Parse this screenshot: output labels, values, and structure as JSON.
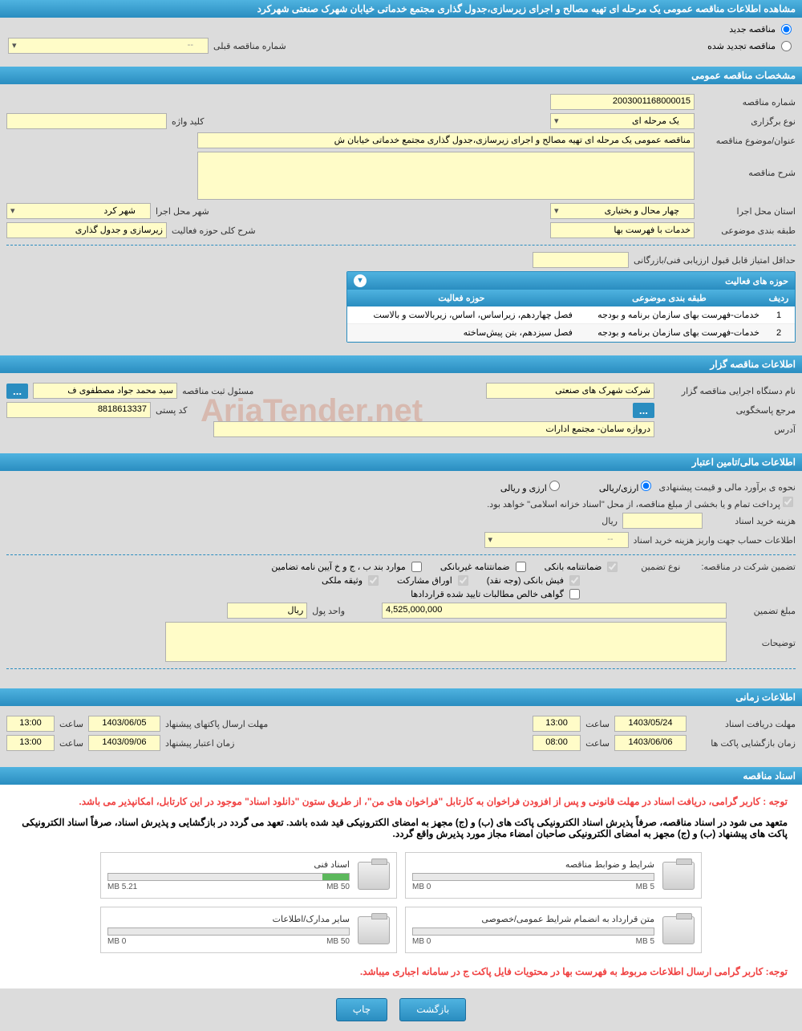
{
  "header": {
    "title": "مشاهده اطلاعات مناقصه عمومی یک مرحله ای تهیه مصالح و اجرای زیرسازی،جدول گذاری مجتمع خدماتی خیابان شهرک صنعتی شهرکرد"
  },
  "tender_type": {
    "new_label": "مناقصه جدید",
    "renewed_label": "مناقصه تجدید شده",
    "prev_number_label": "شماره مناقصه قبلی",
    "prev_number_value": "--"
  },
  "general": {
    "section_title": "مشخصات مناقصه عمومی",
    "number_label": "شماره مناقصه",
    "number_value": "2003001168000015",
    "type_label": "نوع برگزاری",
    "type_value": "یک مرحله ای",
    "keyword_label": "کلید واژه",
    "keyword_value": "",
    "subject_label": "عنوان/موضوع مناقصه",
    "subject_value": "مناقصه عمومی یک مرحله ای تهیه مصالح و اجرای زیرسازی،جدول گذاری مجتمع خدماتی خیابان ش",
    "desc_label": "شرح مناقصه",
    "province_label": "استان محل اجرا",
    "province_value": "چهار محال و بختیاری",
    "city_label": "شهر محل اجرا",
    "city_value": "شهر کرد",
    "category_label": "طبقه بندی موضوعی",
    "category_value": "خدمات با فهرست بها",
    "activity_brief_label": "شرح کلی حوزه فعالیت",
    "activity_brief_value": "زیرسازی و جدول گذاری",
    "min_score_label": "حداقل امتیاز قابل قبول ارزیابی فنی/بازرگانی",
    "min_score_value": ""
  },
  "activity_table": {
    "header": "حوزه های فعالیت",
    "col_row": "ردیف",
    "col_category": "طبقه بندی موضوعی",
    "col_activity": "حوزه فعالیت",
    "rows": [
      {
        "n": "1",
        "category": "خدمات-فهرست بهای سازمان برنامه و بودجه",
        "activity": "فصل چهاردهم، زیراساس، اساس، زیربالاست و بالاست"
      },
      {
        "n": "2",
        "category": "خدمات-فهرست بهای سازمان برنامه و بودجه",
        "activity": "فصل سیزدهم، بتن پیش‌ساخته"
      }
    ]
  },
  "owner": {
    "section_title": "اطلاعات مناقصه گزار",
    "exec_label": "نام دستگاه اجرایی مناقصه گزار",
    "exec_value": "شرکت شهرک های صنعتی",
    "registrar_label": "مسئول ثبت مناقصه",
    "registrar_value": "سید محمد جواد مصطفوی ف",
    "response_label": "مرجع پاسخگویی",
    "postal_label": "کد پستی",
    "postal_value": "8818613337",
    "address_label": "آدرس",
    "address_value": "دروازه سامان- مجتمع ادارات"
  },
  "financial": {
    "section_title": "اطلاعات مالی/تامین اعتبار",
    "estimate_label": "نحوه ی برآورد مالی و قیمت پیشنهادی",
    "opt_rial": "ارزی/ریالی",
    "opt_forex": "ارزی و ریالی",
    "treasury_note": "پرداخت تمام و یا بخشی از مبلغ مناقصه، از محل \"اسناد خزانه اسلامی\" خواهد بود.",
    "doc_fee_label": "هزینه خرید اسناد",
    "doc_fee_unit": "ریال",
    "account_label": "اطلاعات حساب جهت واریز هزینه خرید اسناد",
    "account_value": "--",
    "guarantee_title_label": "تضمین شرکت در مناقصه:",
    "guarantee_type_label": "نوع تضمین",
    "chk_bank": "ضمانتنامه بانکی",
    "chk_nonbank": "ضمانتنامه غیربانکی",
    "chk_cases": "موارد بند ب ، ج و خ آیین نامه تضامین",
    "chk_cash": "فیش بانکی (وجه نقد)",
    "chk_bonds": "اوراق مشارکت",
    "chk_property": "وثیقه ملکی",
    "chk_receivables": "گواهی خالص مطالبات تایید شده قراردادها",
    "amount_label": "مبلغ تضمین",
    "amount_value": "4,525,000,000",
    "unit_label": "واحد پول",
    "unit_value": "ریال",
    "remarks_label": "توضیحات"
  },
  "timing": {
    "section_title": "اطلاعات زمانی",
    "receive_deadline_label": "مهلت دریافت اسناد",
    "receive_deadline_date": "1403/05/24",
    "receive_deadline_time": "13:00",
    "submit_deadline_label": "مهلت ارسال پاکتهای پیشنهاد",
    "submit_deadline_date": "1403/06/05",
    "submit_deadline_time": "13:00",
    "opening_label": "زمان بازگشایی پاکت ها",
    "opening_date": "1403/06/06",
    "opening_time": "08:00",
    "validity_label": "زمان اعتبار پیشنهاد",
    "validity_date": "1403/09/06",
    "validity_time": "13:00",
    "time_word": "ساعت"
  },
  "docs": {
    "section_title": "اسناد مناقصه",
    "warn1": "توجه : کاربر گرامی، دریافت اسناد در مهلت قانونی و پس از افزودن فراخوان به کارتابل \"فراخوان های من\"، از طریق ستون \"دانلود اسناد\" موجود در این کارتابل، امکانپذیر می باشد.",
    "warn2": "متعهد می شود در اسناد مناقصه، صرفاً پذیرش اسناد الکترونیکی پاکت های (ب) و (ج) مجهز به امضای الکترونیکی قید شده باشد. تعهد می گردد در بازگشایی و پذیرش اسناد، صرفاً اسناد الکترونیکی پاکت های پیشنهاد (ب) و (ج) مجهز به امضای الکترونیکی صاحبان امضاء مجاز مورد پذیرش واقع گردد.",
    "warn3": "توجه: کاربر گرامی ارسال اطلاعات مربوط به فهرست بها در محتویات فایل پاکت ج در سامانه اجباری میباشد.",
    "boxes": [
      {
        "title": "شرایط و ضوابط مناقصه",
        "used": "0 MB",
        "total": "5 MB",
        "pct": 0
      },
      {
        "title": "اسناد فنی",
        "used": "5.21 MB",
        "total": "50 MB",
        "pct": 11
      },
      {
        "title": "متن قرارداد به انضمام شرایط عمومی/خصوصی",
        "used": "0 MB",
        "total": "5 MB",
        "pct": 0
      },
      {
        "title": "سایر مدارک/اطلاعات",
        "used": "0 MB",
        "total": "50 MB",
        "pct": 0
      }
    ]
  },
  "buttons": {
    "back": "بازگشت",
    "print": "چاپ"
  },
  "watermark": "AriaTender.net",
  "colors": {
    "header_bg": "#2a8dc0",
    "field_bg": "#fffcc8",
    "page_bg": "#dcdcdc"
  }
}
